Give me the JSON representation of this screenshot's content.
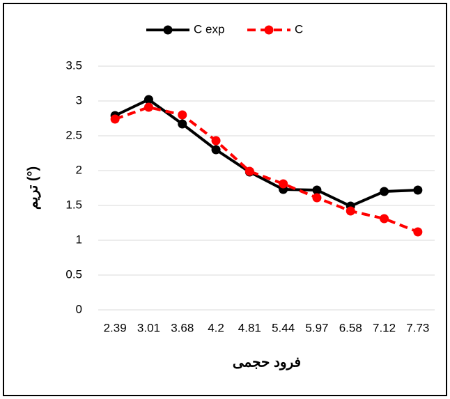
{
  "chart_data": {
    "type": "line",
    "x_label": "فرود حجمی",
    "y_label": "تریم (°)",
    "categories": [
      "2.39",
      "3.01",
      "3.68",
      "4.2",
      "4.81",
      "5.44",
      "5.97",
      "6.58",
      "7.12",
      "7.73"
    ],
    "series": [
      {
        "name": "C exp",
        "color": "#000000",
        "dashed": false,
        "values": [
          2.79,
          3.02,
          2.67,
          2.3,
          1.98,
          1.73,
          1.72,
          1.49,
          1.7,
          1.72
        ]
      },
      {
        "name": "C",
        "color": "#ff0000",
        "dashed": true,
        "values": [
          2.74,
          2.91,
          2.8,
          2.43,
          1.99,
          1.81,
          1.61,
          1.42,
          1.31,
          1.12
        ]
      }
    ],
    "ylim": [
      0,
      3.5
    ],
    "yticks": [
      0,
      0.5,
      1,
      1.5,
      2,
      2.5,
      3,
      3.5
    ],
    "grid": true,
    "legend": "top"
  }
}
